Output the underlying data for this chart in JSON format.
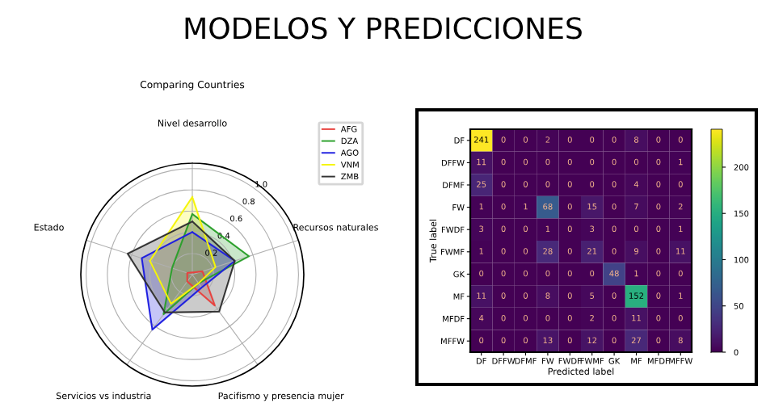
{
  "chart_data": [
    {
      "type": "radar",
      "title": "Comparing Countries",
      "annotations": [
        "MODELOS Y PREDICCIONES"
      ],
      "categories": [
        "Nivel desarrollo",
        "Recursos naturales",
        "Pacifismo y presencia mujer",
        "Servicios vs industria",
        "Estado"
      ],
      "series": [
        {
          "name": "AFG",
          "color": "#e8423f",
          "values": [
            0.02,
            0.1,
            0.36,
            0.08,
            0.05
          ]
        },
        {
          "name": "DZA",
          "color": "#2ca02c",
          "values": [
            0.57,
            0.56,
            0.1,
            0.46,
            0.2
          ]
        },
        {
          "name": "AGO",
          "color": "#1f1fe0",
          "values": [
            0.4,
            0.42,
            0.15,
            0.64,
            0.5
          ]
        },
        {
          "name": "VNM",
          "color": "#f5f50a",
          "values": [
            0.73,
            0.23,
            0.1,
            0.34,
            0.42
          ]
        },
        {
          "name": "ZMB",
          "color": "#333333",
          "values": [
            0.5,
            0.42,
            0.43,
            0.44,
            0.64
          ]
        }
      ],
      "ylim": [
        0,
        1.05
      ],
      "yticks": [
        0.2,
        0.4,
        0.6,
        0.8,
        {
          "value": 1,
          "label": "1.0"
        }
      ],
      "grid": true,
      "legend": "top right"
    },
    {
      "type": "heatmap",
      "xlabel": "Predicted label",
      "ylabel": "True label",
      "categories": [
        "DF",
        "DFFW",
        "DFMF",
        "FW",
        "FWDF",
        "FWMF",
        "GK",
        "MF",
        "MFDF",
        "MFFW"
      ],
      "y_categories": [
        "DF",
        "DFFW",
        "DFMF",
        "FW",
        "FWDF",
        "FWMF",
        "GK",
        "MF",
        "MFDF",
        "MFFW"
      ],
      "cells": [
        [
          241,
          0,
          0,
          2,
          0,
          0,
          0,
          8,
          0,
          0
        ],
        [
          11,
          0,
          0,
          0,
          0,
          0,
          0,
          0,
          0,
          1
        ],
        [
          25,
          0,
          0,
          0,
          0,
          0,
          0,
          4,
          0,
          0
        ],
        [
          1,
          0,
          1,
          68,
          0,
          15,
          0,
          7,
          0,
          2
        ],
        [
          3,
          0,
          0,
          1,
          0,
          3,
          0,
          0,
          0,
          1
        ],
        [
          1,
          0,
          0,
          28,
          0,
          21,
          0,
          9,
          0,
          11
        ],
        [
          0,
          0,
          0,
          0,
          0,
          0,
          48,
          1,
          0,
          0
        ],
        [
          11,
          0,
          0,
          8,
          0,
          5,
          0,
          152,
          0,
          1
        ],
        [
          4,
          0,
          0,
          0,
          0,
          2,
          0,
          11,
          0,
          0
        ],
        [
          0,
          0,
          0,
          13,
          0,
          12,
          0,
          27,
          0,
          8
        ]
      ],
      "clim": [
        0,
        241
      ],
      "cticks": [
        0,
        50,
        100,
        150,
        200
      ],
      "data_labels": true
    }
  ]
}
